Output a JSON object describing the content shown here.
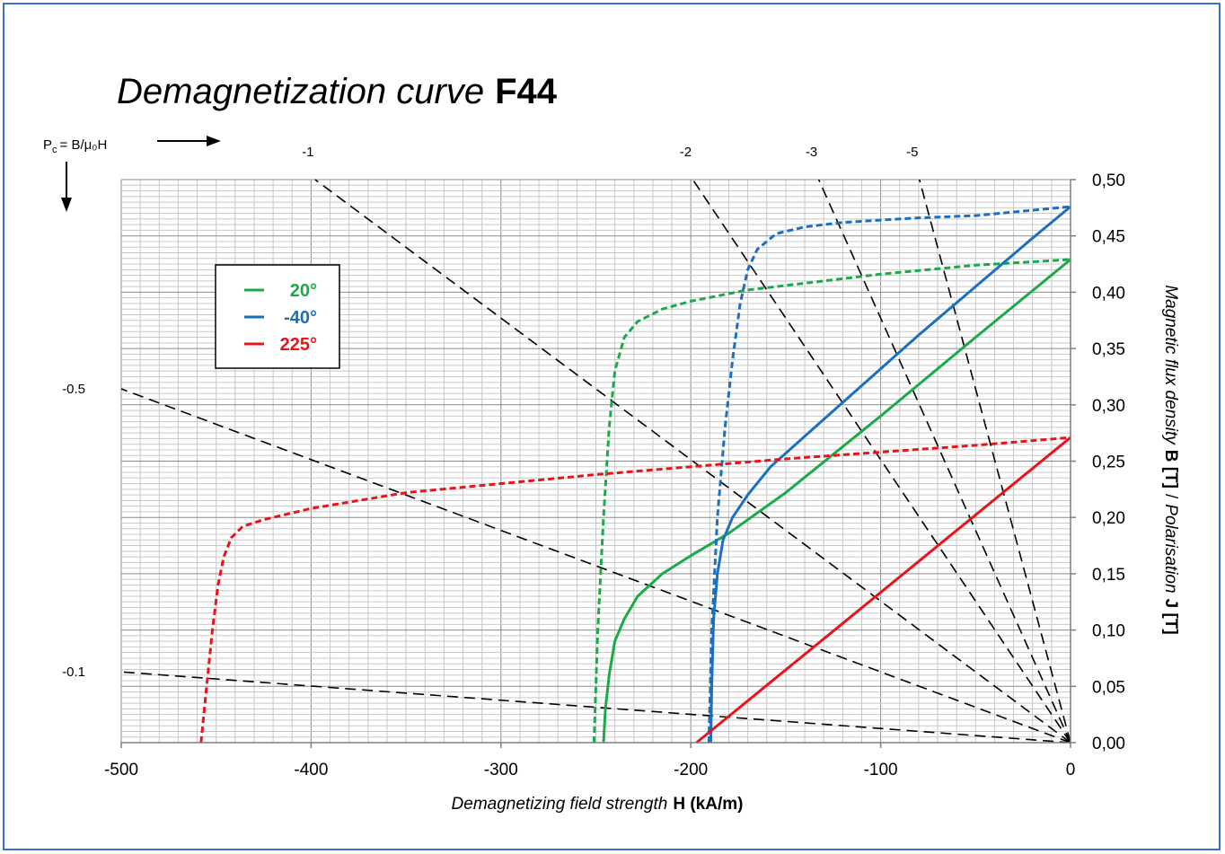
{
  "chart_data": {
    "type": "line",
    "title_italic": "Demagnetization curve",
    "title_bold": "F44",
    "xlabel_italic": "Demagnetizing field strength",
    "xlabel_bold": "H (kA/m)",
    "ylabel_part1": "Magnetic flux density",
    "ylabel_part2": "B [T]",
    "ylabel_part3": "/",
    "ylabel_part4": "Polarisation",
    "ylabel_part5": "J [T]",
    "pc_label": "P",
    "pc_sub": "c",
    "pc_rest": "= B/μ₀H",
    "xlim": [
      -500,
      0
    ],
    "ylim": [
      0,
      0.5
    ],
    "x_ticks": [
      -500,
      -400,
      -300,
      -200,
      -100,
      0
    ],
    "x_tick_labels": [
      "-500",
      "-400",
      "-300",
      "-200",
      "-100",
      "0"
    ],
    "y_ticks": [
      0,
      0.05,
      0.1,
      0.15,
      0.2,
      0.25,
      0.3,
      0.35,
      0.4,
      0.45,
      0.5
    ],
    "y_tick_labels": [
      "0,00",
      "0,05",
      "0,10",
      "0,15",
      "0,20",
      "0,25",
      "0,30",
      "0,35",
      "0,40",
      "0,45",
      "0,50"
    ],
    "grid": true,
    "legend_position": "top-left",
    "legend": [
      {
        "label": "20°",
        "color": "#1aaa48"
      },
      {
        "label": "-40°",
        "color": "#1a6fbf"
      },
      {
        "label": "225°",
        "color": "#e8141a"
      }
    ],
    "load_lines": [
      {
        "label": "-0.1",
        "slope": -0.1
      },
      {
        "label": "-0.5",
        "slope": -0.5
      },
      {
        "label": "-1",
        "slope": -1
      },
      {
        "label": "-2",
        "slope": -2
      },
      {
        "label": "-3",
        "slope": -3
      },
      {
        "label": "-5",
        "slope": -5
      }
    ],
    "series": [
      {
        "kind": "B",
        "color": "#1aaa48",
        "style": "solid",
        "x": [
          -246,
          -245,
          -243,
          -240,
          -235,
          -228,
          -215,
          -200,
          -180,
          -150,
          -100,
          -50,
          0
        ],
        "y": [
          0,
          0.03,
          0.06,
          0.09,
          0.11,
          0.13,
          0.15,
          0.166,
          0.186,
          0.222,
          0.29,
          0.36,
          0.429
        ]
      },
      {
        "kind": "J",
        "color": "#1aaa48",
        "style": "dashed",
        "x": [
          -251,
          -249,
          -246,
          -243,
          -240,
          -235,
          -228,
          -215,
          -200,
          -170,
          -140,
          -100,
          -50,
          0
        ],
        "y": [
          0,
          0.1,
          0.2,
          0.28,
          0.33,
          0.36,
          0.374,
          0.385,
          0.392,
          0.402,
          0.408,
          0.416,
          0.424,
          0.429
        ]
      },
      {
        "kind": "B",
        "color": "#1a6fbf",
        "style": "solid",
        "x": [
          -189.5,
          -189,
          -188,
          -186,
          -183,
          -178,
          -170,
          -158,
          -140,
          -120,
          -100,
          -80,
          -50,
          -20,
          0
        ],
        "y": [
          0,
          0.05,
          0.11,
          0.15,
          0.18,
          0.2,
          0.22,
          0.245,
          0.272,
          0.302,
          0.332,
          0.362,
          0.405,
          0.448,
          0.476
        ]
      },
      {
        "kind": "J",
        "color": "#1a6fbf",
        "style": "dashed",
        "x": [
          -190.5,
          -189,
          -186,
          -182,
          -178,
          -174,
          -170,
          -165,
          -155,
          -140,
          -120,
          -100,
          -80,
          -50,
          0
        ],
        "y": [
          0,
          0.1,
          0.2,
          0.28,
          0.34,
          0.39,
          0.42,
          0.438,
          0.452,
          0.458,
          0.462,
          0.464,
          0.466,
          0.468,
          0.476
        ]
      },
      {
        "kind": "B",
        "color": "#e8141a",
        "style": "solid",
        "x": [
          -197,
          0
        ],
        "y": [
          0,
          0.271
        ]
      },
      {
        "kind": "J",
        "color": "#e8141a",
        "style": "dashed",
        "x": [
          -458,
          -455,
          -452,
          -449,
          -446,
          -442,
          -436,
          -425,
          -400,
          -350,
          -250,
          -150,
          -50,
          0
        ],
        "y": [
          0,
          0.05,
          0.1,
          0.14,
          0.165,
          0.182,
          0.192,
          0.198,
          0.208,
          0.222,
          0.238,
          0.252,
          0.264,
          0.271
        ]
      }
    ]
  }
}
